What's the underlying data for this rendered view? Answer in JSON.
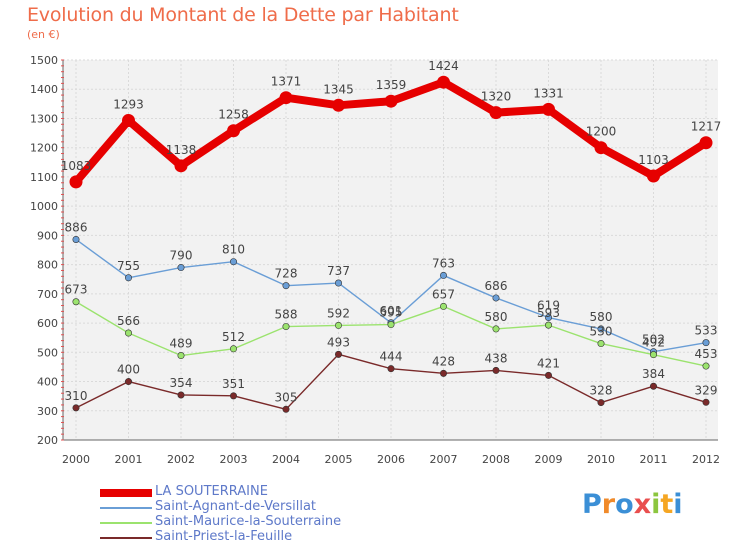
{
  "title": "Evolution du Montant de la Dette par Habitant",
  "subtitle": "(en €)",
  "logo": {
    "text": "Proxiti",
    "letter_colors": [
      "#3b8fd6",
      "#f08a2a",
      "#3b8fd6",
      "#e94e4e",
      "#8cc63f",
      "#f5a623",
      "#3b8fd6"
    ]
  },
  "chart_data": {
    "type": "line",
    "title": "Evolution du Montant de la Dette par Habitant",
    "subtitle": "(en €)",
    "xlabel": "",
    "ylabel": "",
    "x": [
      "2000",
      "2001",
      "2002",
      "2003",
      "2004",
      "2005",
      "2006",
      "2007",
      "2008",
      "2009",
      "2010",
      "2011",
      "2012"
    ],
    "ylim": [
      200,
      1500
    ],
    "yticks": [
      "200",
      "300",
      "400",
      "500",
      "600",
      "700",
      "800",
      "900",
      "1000",
      "1100",
      "1200",
      "1300",
      "1400",
      "1500"
    ],
    "grid": true,
    "legend_position": "bottom-left",
    "series": [
      {
        "name": "LA SOUTERRAINE",
        "color": "#e60000",
        "emphasis": true,
        "values": [
          1083,
          1293,
          1138,
          1258,
          1371,
          1345,
          1359,
          1424,
          1320,
          1331,
          1200,
          1103,
          1217
        ],
        "labels": [
          "1083",
          "1293",
          "1138",
          "1258",
          "1371",
          "1345",
          "1359",
          "1424",
          "1320",
          "1331",
          "1200",
          "1103",
          "1217"
        ]
      },
      {
        "name": "Saint-Agnant-de-Versillat",
        "color": "#6a9ed6",
        "emphasis": false,
        "values": [
          886,
          755,
          790,
          810,
          728,
          737,
          601,
          763,
          686,
          619,
          580,
          502,
          533
        ],
        "labels": [
          "886",
          "755",
          "790",
          "810",
          "728",
          "737",
          "601",
          "763",
          "686",
          "619",
          "580",
          "502",
          "533"
        ]
      },
      {
        "name": "Saint-Maurice-la-Souterraine",
        "color": "#9be36e",
        "emphasis": false,
        "values": [
          673,
          566,
          489,
          512,
          588,
          592,
          595,
          657,
          580,
          593,
          530,
          492,
          453
        ],
        "labels": [
          "673",
          "566",
          "489",
          "512",
          "588",
          "592",
          "595",
          "657",
          "580",
          "593",
          "530",
          "492",
          "453"
        ]
      },
      {
        "name": "Saint-Priest-la-Feuille",
        "color": "#7a2a2a",
        "emphasis": false,
        "values": [
          310,
          400,
          354,
          351,
          305,
          493,
          444,
          428,
          438,
          421,
          328,
          384,
          329
        ],
        "labels": [
          "310",
          "400",
          "354",
          "351",
          "305",
          "493",
          "444",
          "428",
          "438",
          "421",
          "328",
          "384",
          "329"
        ]
      }
    ]
  }
}
